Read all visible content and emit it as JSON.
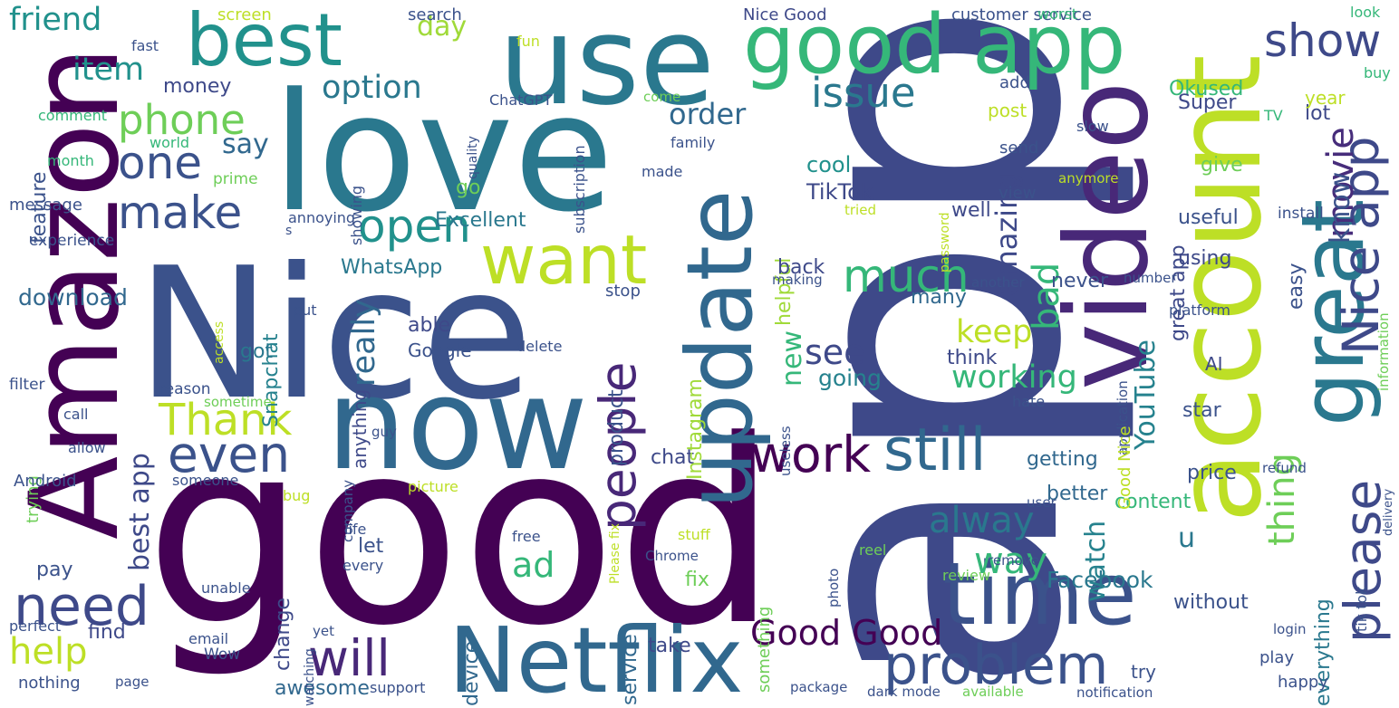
{
  "words": [
    {
      "text": "app",
      "color": "#3e4989"
    },
    {
      "text": "good",
      "color": "#440154"
    },
    {
      "text": "love",
      "color": "#2a788e"
    },
    {
      "text": "Nice",
      "color": "#3b528b"
    },
    {
      "text": "use",
      "color": "#2a788e"
    },
    {
      "text": "account",
      "color": "#bddf26"
    },
    {
      "text": "video",
      "color": "#482878"
    },
    {
      "text": "Amazon",
      "color": "#440154"
    },
    {
      "text": "now",
      "color": "#31688e"
    },
    {
      "text": "Netflix",
      "color": "#31688e"
    },
    {
      "text": "great",
      "color": "#2a788e"
    },
    {
      "text": "time",
      "color": "#3b528b"
    },
    {
      "text": "update",
      "color": "#31688e"
    },
    {
      "text": "good app",
      "color": "#35b779"
    },
    {
      "text": "best",
      "color": "#21918c"
    },
    {
      "text": "want",
      "color": "#bddf26"
    },
    {
      "text": "problem",
      "color": "#3b528b"
    },
    {
      "text": "need",
      "color": "#3e4989"
    },
    {
      "text": "will",
      "color": "#482878"
    },
    {
      "text": "even",
      "color": "#3b528b"
    },
    {
      "text": "work",
      "color": "#440154"
    },
    {
      "text": "still",
      "color": "#31688e"
    },
    {
      "text": "please",
      "color": "#3e4989"
    },
    {
      "text": "Nice app",
      "color": "#3e4989"
    },
    {
      "text": "people",
      "color": "#482878"
    },
    {
      "text": "much",
      "color": "#35b779"
    },
    {
      "text": "Thank",
      "color": "#bddf26"
    },
    {
      "text": "open",
      "color": "#21918c"
    },
    {
      "text": "make",
      "color": "#3b528b"
    },
    {
      "text": "one",
      "color": "#3b528b"
    },
    {
      "text": "issue",
      "color": "#2a788e"
    },
    {
      "text": "show",
      "color": "#3e4989"
    },
    {
      "text": "movie",
      "color": "#472d7b"
    },
    {
      "text": "phone",
      "color": "#6ece58"
    },
    {
      "text": "friend",
      "color": "#21918c"
    },
    {
      "text": "item",
      "color": "#21918c"
    },
    {
      "text": "help",
      "color": "#bddf26"
    },
    {
      "text": "Good Good",
      "color": "#440154"
    },
    {
      "text": "bad",
      "color": "#35b779"
    },
    {
      "text": "alway",
      "color": "#2a788e"
    },
    {
      "text": "thing",
      "color": "#6ece58"
    },
    {
      "text": "way",
      "color": "#35b779"
    },
    {
      "text": "working",
      "color": "#35b779"
    },
    {
      "text": "see",
      "color": "#3e4989"
    },
    {
      "text": "option",
      "color": "#2a788e"
    },
    {
      "text": "order",
      "color": "#31688e"
    },
    {
      "text": "ad",
      "color": "#35b779"
    },
    {
      "text": "amazing",
      "color": "#3e4989"
    },
    {
      "text": "know",
      "color": "#3b528b"
    },
    {
      "text": "keep",
      "color": "#bddf26"
    },
    {
      "text": "say",
      "color": "#31688e"
    },
    {
      "text": "best app",
      "color": "#3e4989"
    },
    {
      "text": "really",
      "color": "#31688e"
    },
    {
      "text": "YouTube",
      "color": "#26828e"
    },
    {
      "text": "watch",
      "color": "#26828e"
    },
    {
      "text": "day",
      "color": "#a0da39"
    },
    {
      "text": "new",
      "color": "#35b779"
    },
    {
      "text": "money",
      "color": "#3e4989"
    },
    {
      "text": "download",
      "color": "#31688e"
    },
    {
      "text": "Facebook",
      "color": "#2a788e"
    },
    {
      "text": "u",
      "color": "#2a788e"
    },
    {
      "text": "TikTok",
      "color": "#3e4989"
    },
    {
      "text": "Excellent",
      "color": "#2a788e"
    },
    {
      "text": "WhatsApp",
      "color": "#2a788e"
    },
    {
      "text": "going",
      "color": "#26828e"
    },
    {
      "text": "able",
      "color": "#3e4989"
    },
    {
      "text": "cool",
      "color": "#21918c"
    },
    {
      "text": "Okused",
      "color": "#35b779"
    },
    {
      "text": "service",
      "color": "#31688e"
    },
    {
      "text": "product",
      "color": "#3b528b"
    },
    {
      "text": "fix",
      "color": "#6ece58"
    },
    {
      "text": "take",
      "color": "#3e4989"
    },
    {
      "text": "awesome",
      "color": "#31688e"
    },
    {
      "text": "change",
      "color": "#3e4989"
    },
    {
      "text": "let",
      "color": "#3b528b"
    },
    {
      "text": "pay",
      "color": "#3b528b"
    },
    {
      "text": "find",
      "color": "#3e4989"
    },
    {
      "text": "feature",
      "color": "#3b528b"
    },
    {
      "text": "Snapchat",
      "color": "#26828e"
    },
    {
      "text": "got",
      "color": "#2a788e"
    },
    {
      "text": "helpful",
      "color": "#a0da39"
    },
    {
      "text": "chat",
      "color": "#3e4989"
    },
    {
      "text": "device",
      "color": "#31688e"
    },
    {
      "text": "Instagram",
      "color": "#a0da39"
    },
    {
      "text": "go",
      "color": "#6ece58"
    },
    {
      "text": "getting",
      "color": "#31688e"
    },
    {
      "text": "content",
      "color": "#35b779"
    },
    {
      "text": "better",
      "color": "#31688e"
    },
    {
      "text": "price",
      "color": "#3b528b"
    },
    {
      "text": "without",
      "color": "#3b528b"
    },
    {
      "text": "everything",
      "color": "#2a788e"
    },
    {
      "text": "AI",
      "color": "#3e4989"
    },
    {
      "text": "great app",
      "color": "#3e4989"
    },
    {
      "text": "give",
      "color": "#6ece58"
    },
    {
      "text": "useful",
      "color": "#3b528b"
    },
    {
      "text": "easy",
      "color": "#3b528b"
    },
    {
      "text": "star",
      "color": "#3b528b"
    },
    {
      "text": "Super",
      "color": "#3e4989"
    },
    {
      "text": "lot",
      "color": "#3e4989"
    },
    {
      "text": "year",
      "color": "#bddf26"
    },
    {
      "text": "using",
      "color": "#3e4989"
    },
    {
      "text": "never",
      "color": "#3b528b"
    },
    {
      "text": "many",
      "color": "#31688e"
    },
    {
      "text": "think",
      "color": "#3e4989"
    },
    {
      "text": "well",
      "color": "#3e4989"
    },
    {
      "text": "back",
      "color": "#3e4989"
    },
    {
      "text": "Google",
      "color": "#3b528b"
    },
    {
      "text": "anything",
      "color": "#3e4989"
    },
    {
      "text": "post",
      "color": "#bddf26"
    },
    {
      "text": "customer service",
      "color": "#3b528b"
    },
    {
      "text": "Nice Good",
      "color": "#3e4989"
    },
    {
      "text": "search",
      "color": "#3b528b"
    },
    {
      "text": "screen",
      "color": "#bddf26"
    },
    {
      "text": "fast",
      "color": "#3b528b"
    },
    {
      "text": "fun",
      "color": "#bddf26"
    },
    {
      "text": "ChatGPT",
      "color": "#3b528b"
    },
    {
      "text": "subscription",
      "color": "#3b528b"
    },
    {
      "text": "worst",
      "color": "#35b779"
    },
    {
      "text": "look",
      "color": "#35b779"
    },
    {
      "text": "buy",
      "color": "#35b779"
    },
    {
      "text": "TV",
      "color": "#35b779"
    },
    {
      "text": "comment",
      "color": "#35b779"
    },
    {
      "text": "world",
      "color": "#35b779"
    },
    {
      "text": "month",
      "color": "#35b779"
    },
    {
      "text": "message",
      "color": "#3b528b"
    },
    {
      "text": "experience",
      "color": "#3b528b"
    },
    {
      "text": "prime",
      "color": "#6ece58"
    },
    {
      "text": "annoying",
      "color": "#3b528b"
    },
    {
      "text": "s",
      "color": "#3b528b"
    },
    {
      "text": "showing",
      "color": "#3b528b"
    },
    {
      "text": "quality",
      "color": "#3b528b"
    },
    {
      "text": "come",
      "color": "#6ece58"
    },
    {
      "text": "family",
      "color": "#3b528b"
    },
    {
      "text": "made",
      "color": "#3b528b"
    },
    {
      "text": "send",
      "color": "#3b528b"
    },
    {
      "text": "add",
      "color": "#3b528b"
    },
    {
      "text": "view",
      "color": "#3b528b"
    },
    {
      "text": "password",
      "color": "#bddf26"
    },
    {
      "text": "anymore",
      "color": "#bddf26"
    },
    {
      "text": "tried",
      "color": "#bddf26"
    },
    {
      "text": "slow",
      "color": "#3b528b"
    },
    {
      "text": "install",
      "color": "#3b528b"
    },
    {
      "text": "information",
      "color": "#6ece58"
    },
    {
      "text": "number",
      "color": "#3b528b"
    },
    {
      "text": "another",
      "color": "#3b528b"
    },
    {
      "text": "making",
      "color": "#3b528b"
    },
    {
      "text": "platform",
      "color": "#3b528b"
    },
    {
      "text": "application",
      "color": "#3b528b"
    },
    {
      "text": "stop",
      "color": "#3b528b"
    },
    {
      "text": "put",
      "color": "#3b528b"
    },
    {
      "text": "access",
      "color": "#bddf26"
    },
    {
      "text": "delete",
      "color": "#3b528b"
    },
    {
      "text": "reason",
      "color": "#3b528b"
    },
    {
      "text": "sometime",
      "color": "#6ece58"
    },
    {
      "text": "filter",
      "color": "#3b528b"
    },
    {
      "text": "call",
      "color": "#3b528b"
    },
    {
      "text": "allow",
      "color": "#3b528b"
    },
    {
      "text": "trying",
      "color": "#6ece58"
    },
    {
      "text": "Android",
      "color": "#3b528b"
    },
    {
      "text": "someone",
      "color": "#3b528b"
    },
    {
      "text": "company",
      "color": "#3b528b"
    },
    {
      "text": "guy",
      "color": "#3b528b"
    },
    {
      "text": "useless",
      "color": "#3b528b"
    },
    {
      "text": "hate",
      "color": "#3b528b"
    },
    {
      "text": "Good Nice",
      "color": "#bddf26"
    },
    {
      "text": "Please fix",
      "color": "#bddf26"
    },
    {
      "text": "picture",
      "color": "#bddf26"
    },
    {
      "text": "bug",
      "color": "#bddf26"
    },
    {
      "text": "refund",
      "color": "#3b528b"
    },
    {
      "text": "delivery",
      "color": "#3b528b"
    },
    {
      "text": "user",
      "color": "#3b528b"
    },
    {
      "text": "life",
      "color": "#3b528b"
    },
    {
      "text": "free",
      "color": "#3b528b"
    },
    {
      "text": "stuff",
      "color": "#bddf26"
    },
    {
      "text": "every",
      "color": "#3b528b"
    },
    {
      "text": "Chrome",
      "color": "#3b528b"
    },
    {
      "text": "something",
      "color": "#6ece58"
    },
    {
      "text": "photo",
      "color": "#3b528b"
    },
    {
      "text": "reel",
      "color": "#6ece58"
    },
    {
      "text": "remove",
      "color": "#3b528b"
    },
    {
      "text": "review",
      "color": "#6ece58"
    },
    {
      "text": "tik tok",
      "color": "#3b528b"
    },
    {
      "text": "unable",
      "color": "#3b528b"
    },
    {
      "text": "perfect",
      "color": "#3b528b"
    },
    {
      "text": "email",
      "color": "#3b528b"
    },
    {
      "text": "watching",
      "color": "#3b528b"
    },
    {
      "text": "yet",
      "color": "#3b528b"
    },
    {
      "text": "Wow",
      "color": "#3b528b"
    },
    {
      "text": "nothing",
      "color": "#3b528b"
    },
    {
      "text": "page",
      "color": "#3b528b"
    },
    {
      "text": "support",
      "color": "#3b528b"
    },
    {
      "text": "package",
      "color": "#3b528b"
    },
    {
      "text": "dark mode",
      "color": "#3b528b"
    },
    {
      "text": "available",
      "color": "#6ece58"
    },
    {
      "text": "notification",
      "color": "#3b528b"
    },
    {
      "text": "login",
      "color": "#3b528b"
    },
    {
      "text": "play",
      "color": "#3b528b"
    },
    {
      "text": "happy",
      "color": "#3b528b"
    },
    {
      "text": "try",
      "color": "#3b528b"
    }
  ]
}
